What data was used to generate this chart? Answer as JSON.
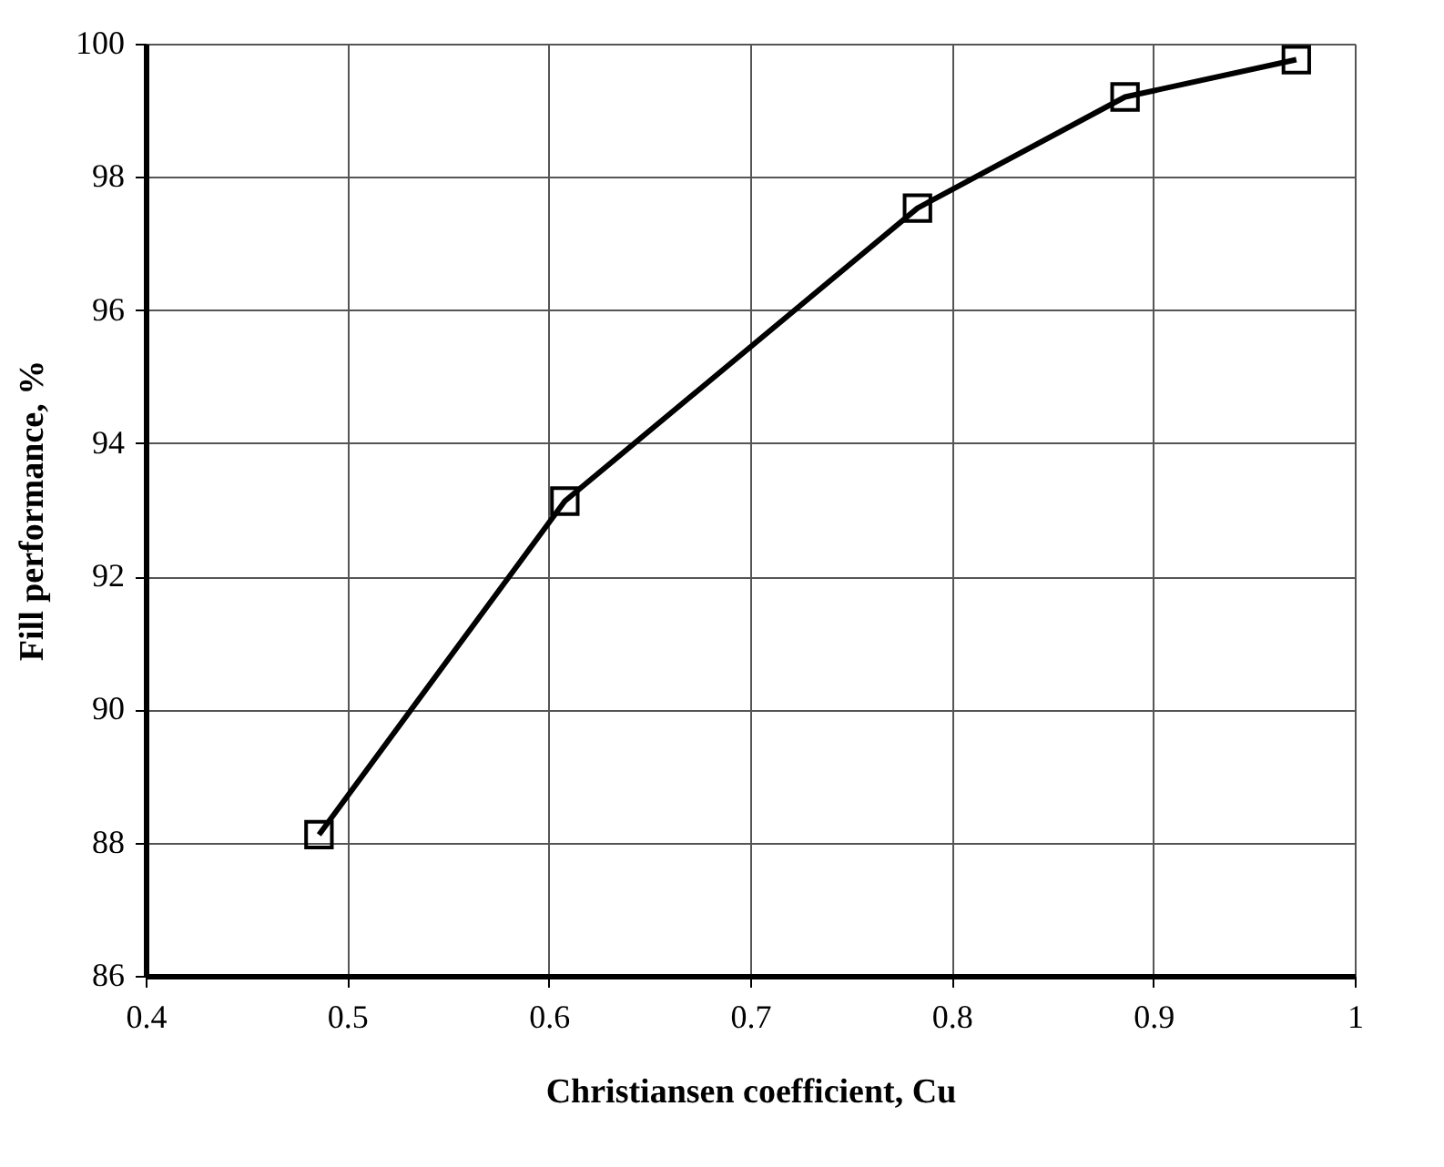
{
  "chart_data": {
    "type": "line",
    "xlabel": "Christiansen coefficient, Cu",
    "ylabel": "Fill performance, %",
    "x": [
      0.486,
      0.608,
      0.783,
      0.886,
      0.971
    ],
    "series": [
      {
        "color": "#000000",
        "values": [
          88.12,
          93.13,
          97.53,
          99.2,
          99.76
        ]
      }
    ],
    "xlim": [
      0.4,
      1.0
    ],
    "xticks": [
      0.4,
      0.5,
      0.6,
      0.7,
      0.8,
      0.9,
      {
        "value": 1.0,
        "label": "1"
      }
    ],
    "ylim": [
      86,
      100
    ],
    "yticks": [
      86,
      88,
      90,
      92,
      94,
      96,
      98,
      100
    ],
    "grid": true,
    "marker": "square",
    "line_style": "solid"
  }
}
